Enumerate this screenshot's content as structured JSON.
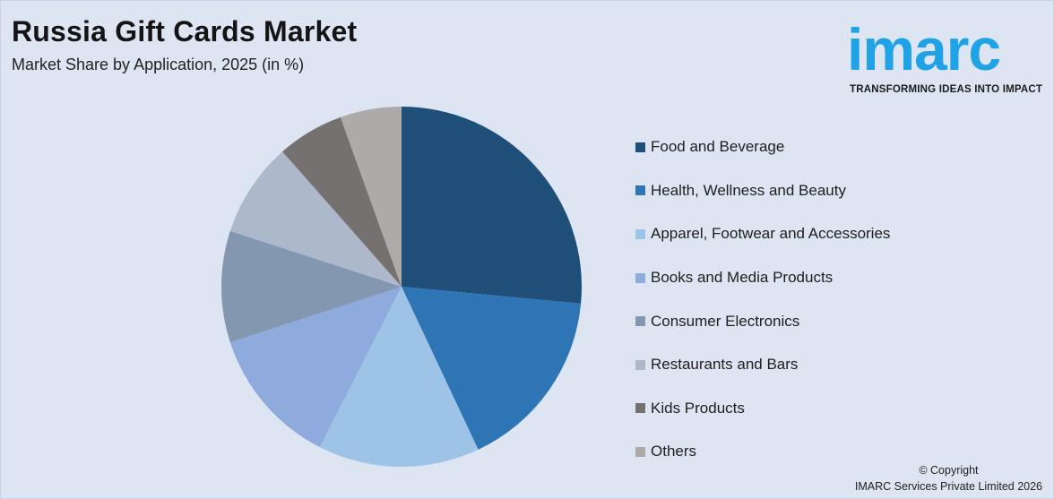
{
  "header": {
    "title": "Russia Gift Cards Market",
    "subtitle": "Market Share by Application, 2025 (in %)"
  },
  "logo": {
    "wordmark": "imarc",
    "tagline": "TRANSFORMING IDEAS INTO IMPACT",
    "color": "#1fa3e6"
  },
  "chart_data": {
    "type": "pie",
    "title": "Russia Gift Cards Market",
    "subtitle": "Market Share by Application, 2025 (in %)",
    "legend_position": "right",
    "start_angle_deg": 0,
    "direction": "clockwise",
    "slices": [
      {
        "label": "Food and Beverage",
        "value": 26.5,
        "color": "#1f4e79"
      },
      {
        "label": "Health, Wellness and Beauty",
        "value": 16.5,
        "color": "#2e75b6"
      },
      {
        "label": "Apparel, Footwear and Accessories",
        "value": 14.5,
        "color": "#9dc3e6"
      },
      {
        "label": "Books and Media Products",
        "value": 12.5,
        "color": "#8faadc"
      },
      {
        "label": "Consumer Electronics",
        "value": 10.0,
        "color": "#8497b0"
      },
      {
        "label": "Restaurants and Bars",
        "value": 8.5,
        "color": "#adb9ca"
      },
      {
        "label": "Kids Products",
        "value": 6.0,
        "color": "#767171"
      },
      {
        "label": "Others",
        "value": 5.5,
        "color": "#aeaaaa"
      }
    ]
  },
  "footer": {
    "copyright_line1": "© Copyright",
    "copyright_line2": "IMARC Services Private Limited 2026"
  }
}
